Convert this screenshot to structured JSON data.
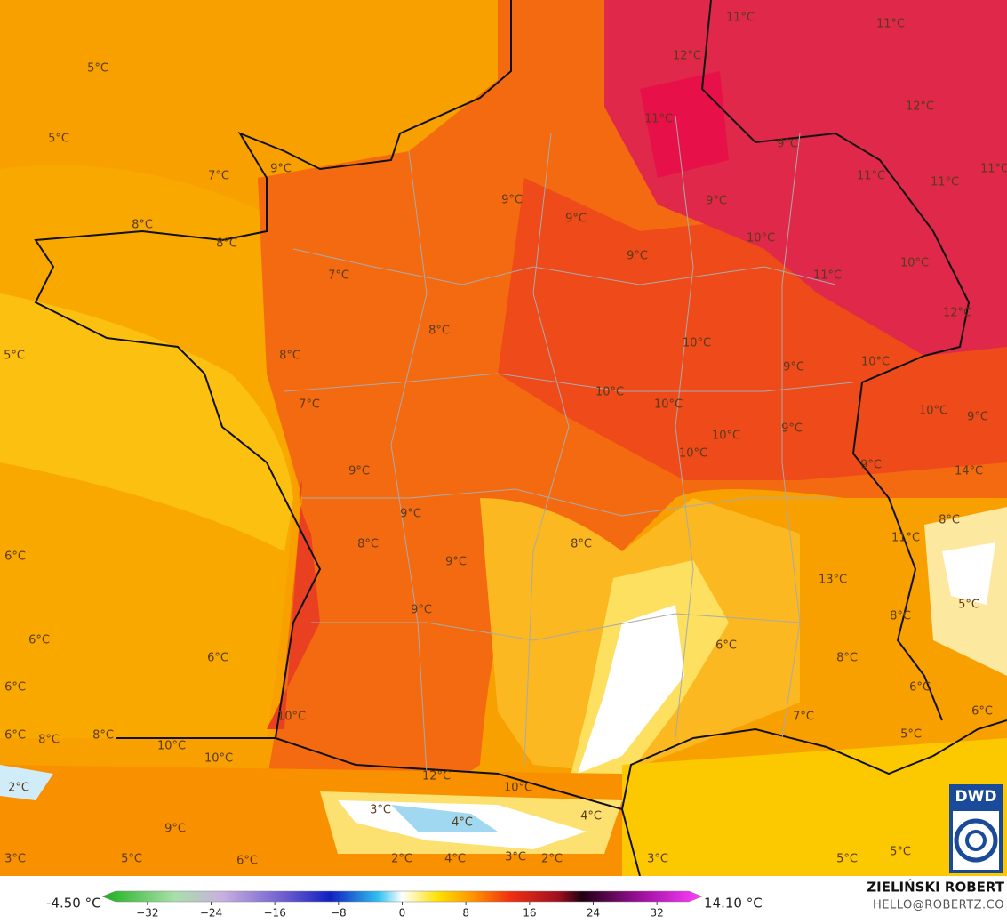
{
  "map_labels": [
    "11°C",
    "11°C",
    "5°C",
    "12°C",
    "12°C",
    "5°C",
    "11°C",
    "9°C",
    "9°C",
    "7°C",
    "11°C",
    "11°C",
    "11°C",
    "9°C",
    "9°C",
    "9°C",
    "8°C",
    "8°C",
    "10°C",
    "9°C",
    "10°C",
    "11°C",
    "7°C",
    "12°C",
    "8°C",
    "10°C",
    "5°C",
    "8°C",
    "9°C",
    "10°C",
    "10°C",
    "10°C",
    "7°C",
    "10°C",
    "9°C",
    "9°C",
    "10°C",
    "10°C",
    "9°C",
    "9°C",
    "14°C",
    "9°C",
    "8°C",
    "8°C",
    "8°C",
    "11°C",
    "6°C",
    "9°C",
    "13°C",
    "5°C",
    "9°C",
    "8°C",
    "6°C",
    "6°C",
    "6°C",
    "8°C",
    "6°C",
    "6°C",
    "10°C",
    "7°C",
    "6°C",
    "6°C",
    "8°C",
    "8°C",
    "5°C",
    "10°C",
    "10°C",
    "12°C",
    "10°C",
    "2°C",
    "3°C",
    "4°C",
    "4°C",
    "9°C",
    "3°C",
    "5°C",
    "6°C",
    "2°C",
    "4°C",
    "3°C",
    "2°C",
    "3°C",
    "5°C",
    "5°C"
  ],
  "colorbar": {
    "min_label": "-4.50 °C",
    "max_label": "14.10 °C",
    "ticks": [
      {
        "value": -32,
        "label": "−32"
      },
      {
        "value": -24,
        "label": "−24"
      },
      {
        "value": -16,
        "label": "−16"
      },
      {
        "value": -8,
        "label": "−8"
      },
      0,
      8,
      16,
      24,
      32
    ],
    "lim": [
      -36,
      36
    ]
  },
  "logo": "DWD",
  "author": "ZIELIŃSKI ROBERT",
  "contact": "HELLO@ROBERTZ.CO"
}
